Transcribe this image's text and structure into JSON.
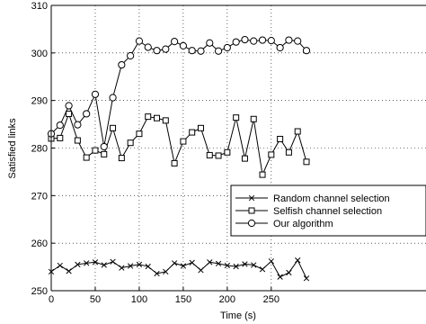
{
  "chart_data": {
    "type": "line",
    "xlabel": "Time (s)",
    "ylabel": "Satisfied links",
    "xlim": [
      0,
      290
    ],
    "ylim": [
      250,
      310
    ],
    "x_ticks": [
      0,
      50,
      100,
      150,
      200,
      250
    ],
    "y_ticks": [
      250,
      260,
      270,
      280,
      290,
      300,
      310
    ],
    "grid": "dotted",
    "legend_position": "lower-right",
    "x": [
      0,
      10,
      20,
      30,
      40,
      50,
      60,
      70,
      80,
      90,
      100,
      110,
      120,
      130,
      140,
      150,
      160,
      170,
      180,
      190,
      200,
      210,
      220,
      230,
      240,
      250,
      260,
      270,
      280,
      290
    ],
    "series": [
      {
        "name": "Random channel selection",
        "marker": "x",
        "values": [
          254.0,
          255.3,
          254.1,
          255.5,
          255.8,
          256.0,
          255.4,
          256.1,
          254.8,
          255.2,
          255.5,
          255.1,
          253.6,
          254.0,
          255.8,
          255.2,
          255.9,
          254.3,
          256.0,
          255.7,
          255.3,
          255.1,
          255.6,
          255.4,
          254.5,
          256.2,
          252.9,
          253.8,
          256.4,
          252.6
        ]
      },
      {
        "name": "Selfish channel selection",
        "marker": "square",
        "values": [
          282.0,
          282.1,
          287.2,
          281.6,
          278.0,
          279.5,
          278.7,
          284.2,
          277.9,
          281.1,
          283.0,
          286.6,
          286.3,
          285.8,
          276.8,
          281.4,
          283.3,
          284.2,
          278.5,
          278.4,
          279.1,
          286.4,
          277.8,
          286.1,
          274.4,
          278.6,
          281.9,
          279.1,
          283.5,
          277.1
        ]
      },
      {
        "name": "Our algorithm",
        "marker": "circle",
        "values": [
          283.0,
          284.8,
          288.9,
          284.9,
          287.2,
          291.3,
          280.3,
          290.6,
          297.5,
          299.4,
          302.5,
          301.2,
          300.5,
          300.8,
          302.4,
          301.5,
          300.5,
          300.4,
          302.1,
          300.4,
          301.1,
          302.3,
          302.8,
          302.5,
          302.7,
          302.6,
          301.1,
          302.7,
          302.5,
          300.5
        ]
      }
    ]
  }
}
